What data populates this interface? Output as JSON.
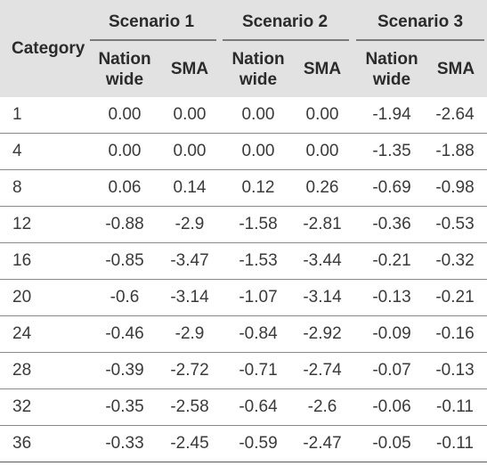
{
  "header": {
    "category": "Category",
    "scenarios": [
      "Scenario 1",
      "Scenario 2",
      "Scenario 3"
    ],
    "sub_nation_line1": "Nation",
    "sub_nation_line2": "wide",
    "sub_sma": "SMA"
  },
  "rows": [
    {
      "category": "1",
      "values": [
        "0.00",
        "0.00",
        "0.00",
        "0.00",
        "-1.94",
        "-2.64"
      ]
    },
    {
      "category": "4",
      "values": [
        "0.00",
        "0.00",
        "0.00",
        "0.00",
        "-1.35",
        "-1.88"
      ]
    },
    {
      "category": "8",
      "values": [
        "0.06",
        "0.14",
        "0.12",
        "0.26",
        "-0.69",
        "-0.98"
      ]
    },
    {
      "category": "12",
      "values": [
        "-0.88",
        "-2.9",
        "-1.58",
        "-2.81",
        "-0.36",
        "-0.53"
      ]
    },
    {
      "category": "16",
      "values": [
        "-0.85",
        "-3.47",
        "-1.53",
        "-3.44",
        "-0.21",
        "-0.32"
      ]
    },
    {
      "category": "20",
      "values": [
        "-0.6",
        "-3.14",
        "-1.07",
        "-3.14",
        "-0.13",
        "-0.21"
      ]
    },
    {
      "category": "24",
      "values": [
        "-0.46",
        "-2.9",
        "-0.84",
        "-2.92",
        "-0.09",
        "-0.16"
      ]
    },
    {
      "category": "28",
      "values": [
        "-0.39",
        "-2.72",
        "-0.71",
        "-2.74",
        "-0.07",
        "-0.13"
      ]
    },
    {
      "category": "32",
      "values": [
        "-0.35",
        "-2.58",
        "-0.64",
        "-2.6",
        "-0.06",
        "-0.11"
      ]
    },
    {
      "category": "36",
      "values": [
        "-0.33",
        "-2.45",
        "-0.59",
        "-2.47",
        "-0.05",
        "-0.11"
      ]
    }
  ]
}
